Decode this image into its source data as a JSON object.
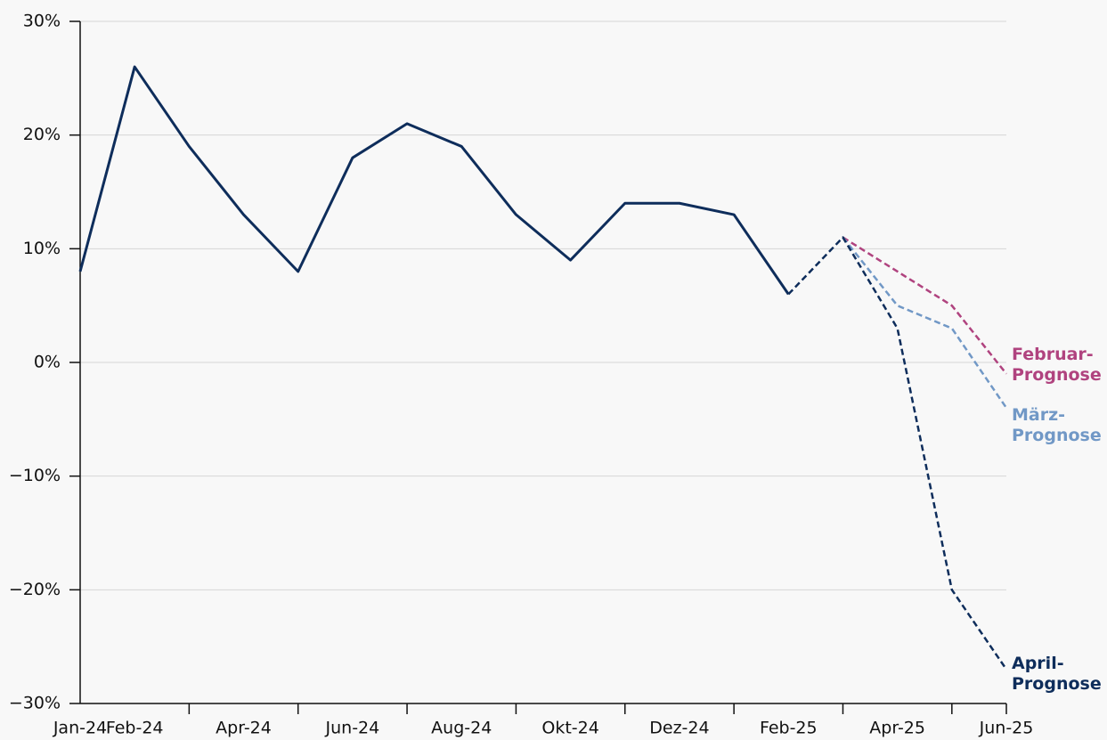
{
  "chart_data": {
    "type": "line",
    "categories": [
      "Jan-24",
      "Feb-24",
      null,
      "Apr-24",
      null,
      "Jun-24",
      null,
      "Aug-24",
      null,
      "Okt-24",
      null,
      "Dez-24",
      null,
      "Feb-25",
      null,
      "Apr-25",
      null,
      "Jun-25"
    ],
    "series": [
      {
        "name": "Februar-Prognose",
        "color": "#b0437f",
        "style": "dashed",
        "values": [
          null,
          null,
          null,
          null,
          null,
          null,
          null,
          null,
          null,
          null,
          null,
          null,
          null,
          null,
          11,
          8,
          5,
          -1
        ]
      },
      {
        "name": "März-Prognose",
        "color": "#7198c6",
        "style": "dashed",
        "values": [
          null,
          null,
          null,
          null,
          null,
          null,
          null,
          null,
          null,
          null,
          null,
          null,
          null,
          null,
          11,
          5,
          3,
          -4
        ]
      },
      {
        "name": "April-Prognose",
        "color": "#0e2d5b",
        "style": "dashed",
        "values": [
          null,
          null,
          null,
          null,
          null,
          null,
          null,
          null,
          null,
          null,
          null,
          null,
          null,
          6,
          11,
          3,
          -20,
          -27
        ]
      },
      {
        "color": "#0e2d5b",
        "style": "solid",
        "values": [
          8,
          26,
          19,
          13,
          8,
          18,
          21,
          19,
          13,
          9,
          14,
          14,
          13,
          6,
          null,
          null,
          null,
          null
        ]
      }
    ],
    "ylim": [
      -30,
      30
    ],
    "yticks": [
      {
        "value": -30,
        "label": "−30%"
      },
      {
        "value": -20,
        "label": "−20%"
      },
      {
        "value": -10,
        "label": "−10%"
      },
      {
        "value": 0,
        "label": "0%"
      },
      {
        "value": 10,
        "label": "10%"
      },
      {
        "value": 20,
        "label": "20%"
      },
      {
        "value": 30,
        "label": "30%"
      }
    ],
    "grid": true
  }
}
